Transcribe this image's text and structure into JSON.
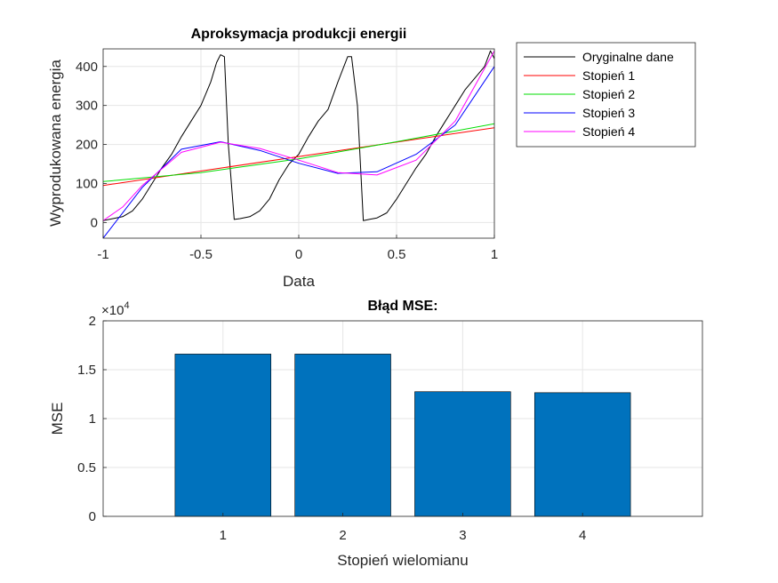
{
  "chart_data": [
    {
      "type": "line",
      "title": "Aproksymacja produkcji energii",
      "xlabel": "Data",
      "ylabel": "Wyprodukowana energia",
      "xlim": [
        -1,
        1
      ],
      "ylim": [
        -40,
        445
      ],
      "xticks": [
        -1,
        -0.5,
        0,
        0.5,
        1
      ],
      "xtick_labels": [
        "-1",
        "-0.5",
        "0",
        "0.5",
        "1"
      ],
      "yticks": [
        0,
        100,
        200,
        300,
        400
      ],
      "ytick_labels": [
        "0",
        "100",
        "200",
        "300",
        "400"
      ],
      "grid": true,
      "legend_position": "outside-right",
      "series": [
        {
          "name": "Oryginalne dane",
          "color": "#000000",
          "x": [
            -1,
            -0.95,
            -0.9,
            -0.85,
            -0.8,
            -0.75,
            -0.7,
            -0.65,
            -0.6,
            -0.55,
            -0.5,
            -0.45,
            -0.42,
            -0.4,
            -0.38,
            -0.36,
            -0.33,
            -0.3,
            -0.25,
            -0.2,
            -0.15,
            -0.1,
            -0.05,
            0,
            0.05,
            0.1,
            0.15,
            0.2,
            0.25,
            0.27,
            0.3,
            0.33,
            0.36,
            0.4,
            0.45,
            0.5,
            0.55,
            0.6,
            0.65,
            0.7,
            0.75,
            0.8,
            0.85,
            0.9,
            0.95,
            0.98,
            1
          ],
          "y": [
            5,
            10,
            15,
            30,
            60,
            100,
            140,
            175,
            220,
            260,
            300,
            360,
            410,
            430,
            425,
            200,
            8,
            10,
            15,
            30,
            60,
            110,
            150,
            175,
            220,
            260,
            290,
            360,
            425,
            425,
            300,
            5,
            8,
            12,
            25,
            60,
            100,
            140,
            175,
            220,
            260,
            300,
            340,
            370,
            400,
            440,
            420
          ]
        },
        {
          "name": "Stopień 1",
          "color": "#ff0000",
          "x": [
            -1,
            1
          ],
          "y": [
            95,
            243
          ]
        },
        {
          "name": "Stopień 2",
          "color": "#00dd00",
          "x": [
            -1,
            -0.5,
            0,
            0.5,
            1
          ],
          "y": [
            105,
            128,
            163,
            207,
            253
          ]
        },
        {
          "name": "Stopień 3",
          "color": "#0000ff",
          "x": [
            -1,
            -0.8,
            -0.6,
            -0.4,
            -0.2,
            0,
            0.2,
            0.4,
            0.6,
            0.8,
            1
          ],
          "y": [
            -40,
            90,
            188,
            207,
            185,
            152,
            126,
            130,
            175,
            250,
            400
          ]
        },
        {
          "name": "Stopień 4",
          "color": "#ff00ff",
          "x": [
            -1,
            -0.9,
            -0.8,
            -0.6,
            -0.4,
            -0.2,
            0,
            0.2,
            0.4,
            0.6,
            0.8,
            0.9,
            1
          ],
          "y": [
            5,
            40,
            95,
            180,
            206,
            190,
            160,
            128,
            122,
            160,
            260,
            350,
            440
          ]
        }
      ]
    },
    {
      "type": "bar",
      "title": "Błąd MSE:",
      "xlabel": "Stopień wielomianu",
      "ylabel": "MSE",
      "exponent_label": "×10",
      "exponent_value": "4",
      "categories": [
        "1",
        "2",
        "3",
        "4"
      ],
      "values": [
        16600,
        16600,
        12750,
        12650
      ],
      "xlim": [
        0,
        5
      ],
      "ylim": [
        0,
        20000
      ],
      "yticks": [
        0,
        5000,
        10000,
        15000,
        20000
      ],
      "ytick_labels": [
        "0",
        "0.5",
        "1",
        "1.5",
        "2"
      ],
      "grid": true,
      "bar_color": "#0072bd"
    }
  ]
}
